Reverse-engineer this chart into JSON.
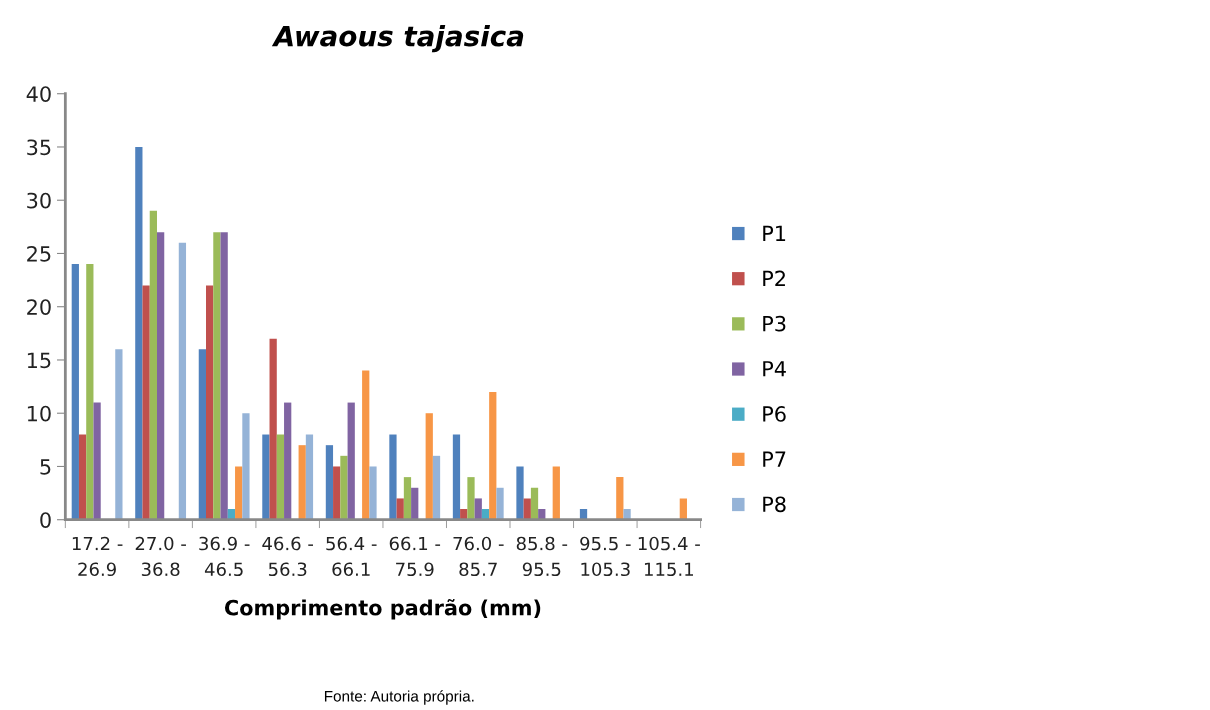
{
  "chart_data": {
    "type": "bar",
    "title": "Awaous tajasica",
    "xlabel": "Comprimento padrão (mm)",
    "categories": [
      "17.2 - 26.9",
      "27.0 - 36.8",
      "36.9 - 46.5",
      "46.6 - 56.3",
      "56.4 - 66.1",
      "66.1 - 75.9",
      "76.0 - 85.7",
      "85.8 - 95.5",
      "95.5 - 105.3",
      "105.4 - 115.1"
    ],
    "series": [
      {
        "name": "P1",
        "color": "#4f81bd",
        "values": [
          24,
          35,
          16,
          8,
          7,
          8,
          8,
          5,
          1,
          0
        ]
      },
      {
        "name": "P2",
        "color": "#c0504d",
        "values": [
          8,
          22,
          22,
          17,
          5,
          2,
          1,
          2,
          0,
          0
        ]
      },
      {
        "name": "P3",
        "color": "#9bbb59",
        "values": [
          24,
          29,
          27,
          8,
          6,
          4,
          4,
          3,
          0,
          0
        ]
      },
      {
        "name": "P4",
        "color": "#8064a2",
        "values": [
          11,
          27,
          27,
          11,
          11,
          3,
          2,
          1,
          0,
          0
        ]
      },
      {
        "name": "P6",
        "color": "#4bacc6",
        "values": [
          0,
          0,
          1,
          0,
          0,
          0,
          1,
          0,
          0,
          0
        ]
      },
      {
        "name": "P7",
        "color": "#f79646",
        "values": [
          0,
          0,
          5,
          7,
          14,
          10,
          12,
          5,
          4,
          2
        ]
      },
      {
        "name": "P8",
        "color": "#95b3d7",
        "values": [
          16,
          26,
          10,
          8,
          5,
          6,
          3,
          0,
          1,
          0
        ]
      }
    ],
    "ylim": [
      0,
      40
    ],
    "yticks": [
      0,
      5,
      10,
      15,
      20,
      25,
      30,
      35,
      40
    ],
    "grid": false,
    "legend": "right",
    "annotations": [
      "Fonte: Autoria própria."
    ]
  }
}
